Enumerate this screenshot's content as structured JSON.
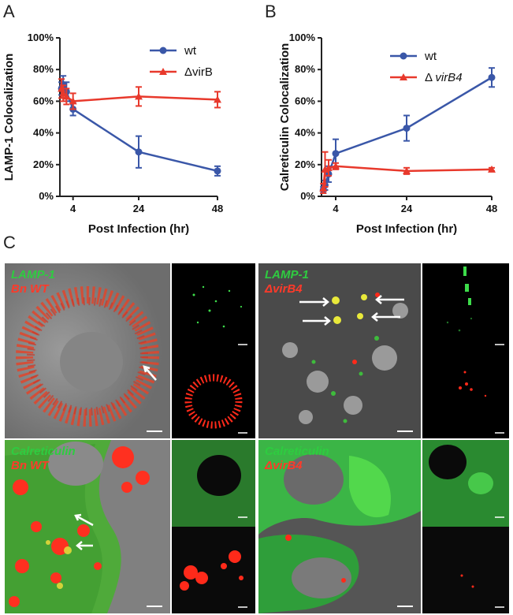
{
  "panels": {
    "a": "A",
    "b": "B",
    "c": "C"
  },
  "chart_data": [
    {
      "type": "line",
      "ylabel": "LAMP-1 Colocalization",
      "xlabel": "Post Infection (hr)",
      "ylim": [
        0,
        100
      ],
      "xlim": [
        0,
        48
      ],
      "yticks": [
        "0%",
        "20%",
        "40%",
        "60%",
        "80%",
        "100%"
      ],
      "xticks": [
        "4",
        "24",
        "48"
      ],
      "legend_position": "top-right",
      "series": [
        {
          "name": "wt",
          "color": "#3a57a8",
          "marker": "circle",
          "x": [
            0.5,
            1,
            2,
            4,
            24,
            48
          ],
          "y": [
            68,
            70,
            66,
            55,
            28,
            16
          ],
          "err": [
            4,
            6,
            6,
            4,
            10,
            3
          ]
        },
        {
          "name": "ΔvirB",
          "color": "#e8392c",
          "marker": "triangle",
          "x": [
            0.5,
            1,
            2,
            4,
            24,
            48
          ],
          "y": [
            68,
            65,
            63,
            60,
            63,
            61
          ],
          "err": [
            6,
            5,
            5,
            5,
            6,
            5
          ]
        }
      ]
    },
    {
      "type": "line",
      "ylabel": "Calreticulin Colocalization",
      "xlabel": "Post Infection (hr)",
      "ylim": [
        0,
        100
      ],
      "xlim": [
        0,
        48
      ],
      "yticks": [
        "0%",
        "20%",
        "40%",
        "60%",
        "80%",
        "100%"
      ],
      "xticks": [
        "4",
        "24",
        "48"
      ],
      "legend_position": "top-right",
      "series": [
        {
          "name": "wt",
          "color": "#3a57a8",
          "marker": "circle",
          "x": [
            0.5,
            1,
            2,
            4,
            24,
            48
          ],
          "y": [
            4,
            7,
            14,
            27,
            43,
            75
          ],
          "err": [
            2,
            3,
            5,
            9,
            8,
            6
          ]
        },
        {
          "name": "Δ virB4",
          "name_parts": [
            "Δ ",
            "virB4"
          ],
          "color": "#e8392c",
          "marker": "triangle",
          "x": [
            0.5,
            1,
            2,
            4,
            24,
            48
          ],
          "y": [
            5,
            17,
            18,
            19,
            16,
            17
          ],
          "err": [
            3,
            11,
            5,
            2,
            2,
            1
          ]
        }
      ]
    }
  ],
  "micrographs": [
    {
      "label1": "LAMP-1",
      "label2": "Bn WT",
      "label1_color": "#2ecc40",
      "label2_color": "#ff3a2a"
    },
    {
      "label1": "LAMP-1",
      "label2": "ΔvirB4",
      "label1_color": "#2ecc40",
      "label2_color": "#ff3a2a"
    },
    {
      "label1": "Calreticulin",
      "label2": "Bn WT",
      "label1_color": "#2ecc40",
      "label2_color": "#ff3a2a"
    },
    {
      "label1": "Calreticulin",
      "label2": "ΔvirB4",
      "label1_color": "#2ecc40",
      "label2_color": "#ff3a2a"
    }
  ]
}
